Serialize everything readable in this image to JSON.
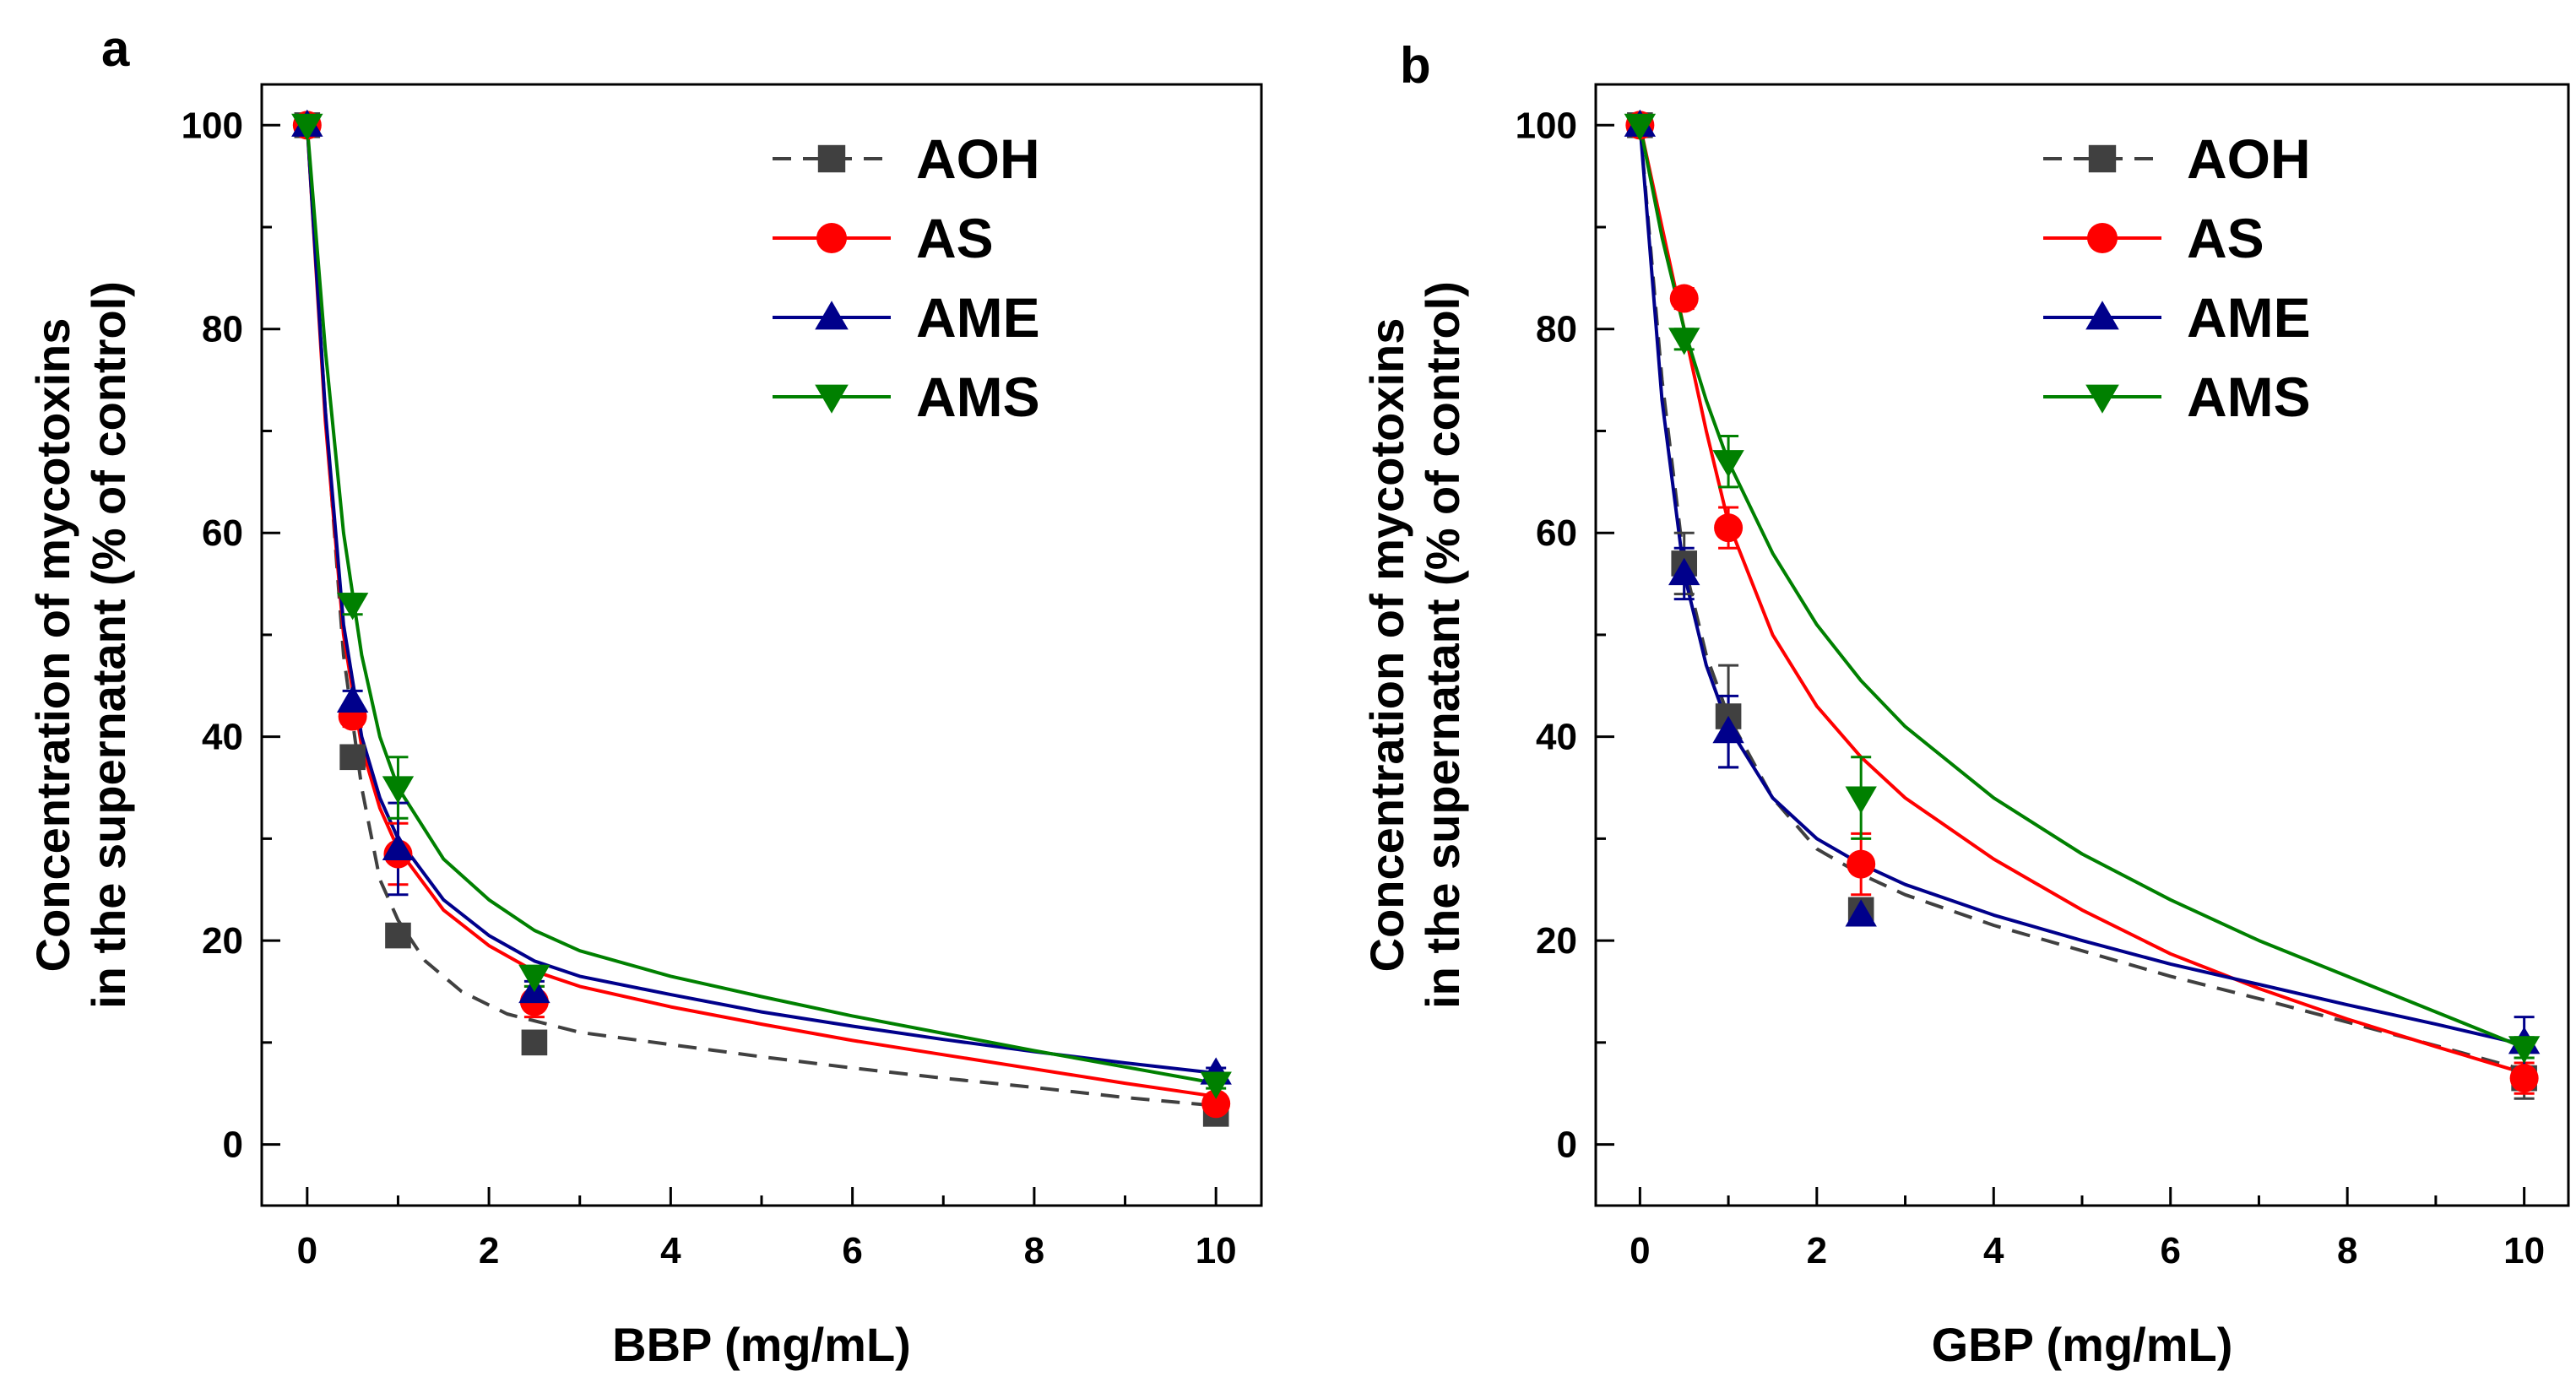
{
  "chart_data": [
    {
      "panel": "a",
      "type": "line",
      "xlabel": "BBP (mg/mL)",
      "ylabel": [
        "Concentration of mycotoxins",
        "in the supernatant (% of control)"
      ],
      "xlim": [
        -0.5,
        10.5
      ],
      "ylim": [
        -6,
        104
      ],
      "xticks": [
        0,
        2,
        4,
        6,
        8,
        10
      ],
      "yticks": [
        0,
        20,
        40,
        60,
        80,
        100
      ],
      "x": [
        0,
        0.5,
        1,
        2.5,
        10
      ],
      "series": [
        {
          "name": "AOH",
          "color": "#404040",
          "marker": "square",
          "dashed": true,
          "values": [
            100,
            38,
            20.5,
            10,
            3
          ],
          "errors": [
            0,
            1,
            1,
            1,
            0.5
          ],
          "fit": [
            [
              0,
              100
            ],
            [
              0.2,
              72
            ],
            [
              0.4,
              48
            ],
            [
              0.6,
              35
            ],
            [
              0.8,
              26
            ],
            [
              1,
              22
            ],
            [
              1.3,
              18
            ],
            [
              1.7,
              15
            ],
            [
              2.2,
              12.8
            ],
            [
              3,
              11
            ],
            [
              4,
              9.8
            ],
            [
              5,
              8.6
            ],
            [
              6,
              7.5
            ],
            [
              7,
              6.5
            ],
            [
              8,
              5.6
            ],
            [
              9,
              4.6
            ],
            [
              10,
              3.8
            ]
          ]
        },
        {
          "name": "AS",
          "color": "#ff0000",
          "marker": "circle",
          "dashed": false,
          "values": [
            100,
            42,
            28.5,
            14,
            4
          ],
          "errors": [
            0,
            1,
            3,
            1.5,
            0.5
          ],
          "fit": [
            [
              0,
              100
            ],
            [
              0.2,
              71
            ],
            [
              0.4,
              50
            ],
            [
              0.6,
              39
            ],
            [
              0.8,
              33
            ],
            [
              1,
              29
            ],
            [
              1.5,
              23
            ],
            [
              2,
              19.5
            ],
            [
              2.5,
              17
            ],
            [
              3,
              15.5
            ],
            [
              4,
              13.5
            ],
            [
              5,
              11.8
            ],
            [
              6,
              10.2
            ],
            [
              7,
              8.8
            ],
            [
              8,
              7.4
            ],
            [
              9,
              6
            ],
            [
              10,
              4.7
            ]
          ]
        },
        {
          "name": "AME",
          "color": "#00008b",
          "marker": "triangle-up",
          "dashed": false,
          "values": [
            100,
            43.5,
            29,
            15,
            7
          ],
          "errors": [
            0,
            1,
            4.5,
            1,
            0.5
          ],
          "fit": [
            [
              0,
              100
            ],
            [
              0.2,
              72
            ],
            [
              0.4,
              51
            ],
            [
              0.6,
              40
            ],
            [
              0.8,
              34
            ],
            [
              1,
              30
            ],
            [
              1.5,
              24
            ],
            [
              2,
              20.5
            ],
            [
              2.5,
              18
            ],
            [
              3,
              16.5
            ],
            [
              4,
              14.7
            ],
            [
              5,
              13
            ],
            [
              6,
              11.6
            ],
            [
              7,
              10.3
            ],
            [
              8,
              9.1
            ],
            [
              9,
              8
            ],
            [
              10,
              7
            ]
          ]
        },
        {
          "name": "AMS",
          "color": "#008000",
          "marker": "triangle-down",
          "dashed": false,
          "values": [
            100,
            53,
            35,
            16.5,
            6
          ],
          "errors": [
            0,
            1,
            3,
            1,
            0.5
          ],
          "fit": [
            [
              0,
              100
            ],
            [
              0.2,
              78
            ],
            [
              0.4,
              60
            ],
            [
              0.6,
              48
            ],
            [
              0.8,
              40
            ],
            [
              1,
              35
            ],
            [
              1.5,
              28
            ],
            [
              2,
              24
            ],
            [
              2.5,
              21
            ],
            [
              3,
              19
            ],
            [
              4,
              16.5
            ],
            [
              5,
              14.5
            ],
            [
              6,
              12.6
            ],
            [
              7,
              10.9
            ],
            [
              8,
              9.2
            ],
            [
              9,
              7.6
            ],
            [
              10,
              6
            ]
          ]
        }
      ]
    },
    {
      "panel": "b",
      "type": "line",
      "xlabel": "GBP (mg/mL)",
      "ylabel": [
        "Concentration of mycotoxins",
        "in the supernatant (% of control)"
      ],
      "xlim": [
        -0.5,
        10.5
      ],
      "ylim": [
        -6,
        104
      ],
      "xticks": [
        0,
        2,
        4,
        6,
        8,
        10
      ],
      "yticks": [
        0,
        20,
        40,
        60,
        80,
        100
      ],
      "x": [
        0,
        0.5,
        1,
        2.5,
        10
      ],
      "series": [
        {
          "name": "AOH",
          "color": "#404040",
          "marker": "square",
          "dashed": true,
          "values": [
            100,
            57,
            42,
            23,
            6.5
          ],
          "errors": [
            0,
            3,
            5,
            1,
            2
          ],
          "fit": [
            [
              0,
              100
            ],
            [
              0.25,
              75
            ],
            [
              0.5,
              57
            ],
            [
              0.75,
              48
            ],
            [
              1,
              42
            ],
            [
              1.5,
              34
            ],
            [
              2,
              29
            ],
            [
              2.5,
              26.5
            ],
            [
              3,
              24.5
            ],
            [
              4,
              21.5
            ],
            [
              5,
              19
            ],
            [
              6,
              16.5
            ],
            [
              7,
              14.3
            ],
            [
              8,
              12
            ],
            [
              9,
              9.7
            ],
            [
              10,
              7.3
            ]
          ]
        },
        {
          "name": "AS",
          "color": "#ff0000",
          "marker": "circle",
          "dashed": false,
          "values": [
            100,
            83,
            60.5,
            27.5,
            6.5
          ],
          "errors": [
            0,
            1,
            2,
            3,
            1.5
          ],
          "fit": [
            [
              0,
              100
            ],
            [
              0.25,
              90
            ],
            [
              0.5,
              80
            ],
            [
              0.75,
              70
            ],
            [
              1,
              61
            ],
            [
              1.5,
              50
            ],
            [
              2,
              43
            ],
            [
              2.5,
              38
            ],
            [
              3,
              34
            ],
            [
              4,
              28
            ],
            [
              5,
              23
            ],
            [
              6,
              18.7
            ],
            [
              7,
              15.3
            ],
            [
              8,
              12.3
            ],
            [
              9,
              9.6
            ],
            [
              10,
              7
            ]
          ]
        },
        {
          "name": "AME",
          "color": "#00008b",
          "marker": "triangle-up",
          "dashed": false,
          "values": [
            100,
            56,
            40.5,
            22.5,
            10
          ],
          "errors": [
            0,
            2.5,
            3.5,
            1,
            2.5
          ],
          "fit": [
            [
              0,
              100
            ],
            [
              0.25,
              73
            ],
            [
              0.5,
              56
            ],
            [
              0.75,
              47
            ],
            [
              1,
              41
            ],
            [
              1.5,
              34
            ],
            [
              2,
              30
            ],
            [
              2.5,
              27.5
            ],
            [
              3,
              25.5
            ],
            [
              4,
              22.5
            ],
            [
              5,
              20
            ],
            [
              6,
              17.7
            ],
            [
              7,
              15.7
            ],
            [
              8,
              13.7
            ],
            [
              9,
              11.8
            ],
            [
              10,
              9.8
            ]
          ]
        },
        {
          "name": "AMS",
          "color": "#008000",
          "marker": "triangle-down",
          "dashed": false,
          "values": [
            100,
            79,
            67,
            34,
            9.5
          ],
          "errors": [
            0,
            1,
            2.5,
            4,
            1
          ],
          "fit": [
            [
              0,
              100
            ],
            [
              0.25,
              89
            ],
            [
              0.5,
              80
            ],
            [
              0.75,
              73
            ],
            [
              1,
              67
            ],
            [
              1.5,
              58
            ],
            [
              2,
              51
            ],
            [
              2.5,
              45.5
            ],
            [
              3,
              41
            ],
            [
              4,
              34
            ],
            [
              5,
              28.5
            ],
            [
              6,
              24
            ],
            [
              7,
              20
            ],
            [
              8,
              16.5
            ],
            [
              9,
              13
            ],
            [
              10,
              9.5
            ]
          ]
        }
      ]
    }
  ]
}
